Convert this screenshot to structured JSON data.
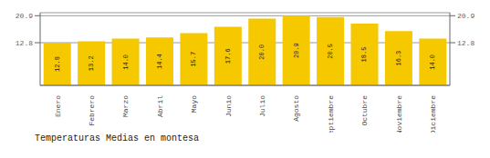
{
  "chart_data": {
    "type": "bar",
    "title": "Temperaturas Medias en montesa",
    "categories": [
      "Enero",
      "Febrero",
      "Marzo",
      "Abril",
      "Mayo",
      "Junio",
      "Julio",
      "Agosto",
      "Septiembre",
      "Octubre",
      "Noviembre",
      "Diciembre"
    ],
    "values": [
      12.8,
      13.2,
      14.0,
      14.4,
      15.7,
      17.6,
      20.0,
      20.9,
      20.5,
      18.5,
      16.3,
      14.0
    ],
    "value_labels": [
      "12.8",
      "13.2",
      "14.0",
      "14.4",
      "15.7",
      "17.6",
      "20.0",
      "20.9",
      "20.5",
      "18.5",
      "16.3",
      "14.0"
    ],
    "color": "#F5C800",
    "ylim": [
      0,
      21.8
    ],
    "yticks": [
      12.8,
      20.9
    ],
    "grid": true,
    "data_labels": true
  }
}
